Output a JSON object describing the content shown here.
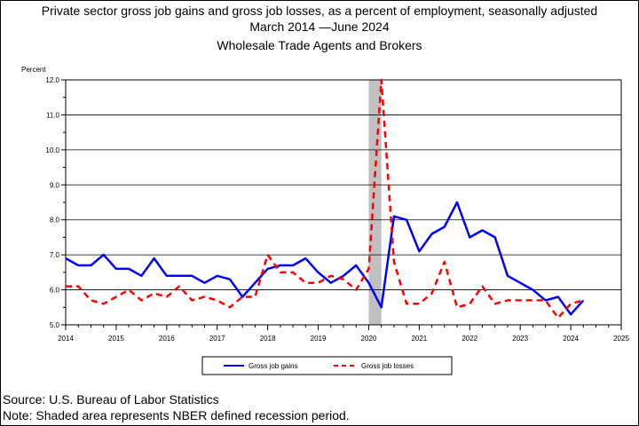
{
  "titles": {
    "line1": "Private sector gross job gains and gross job losses, as a percent of employment, seasonally adjusted",
    "line2": "March 2014 —June 2024",
    "line3": "Wholesale Trade Agents and Brokers"
  },
  "footer": {
    "source": "Source: U.S. Bureau of Labor Statistics",
    "note": "Note: Shaded area represents NBER defined recession period."
  },
  "chart_data": {
    "type": "line",
    "ylabel": "Percent",
    "ylim": [
      5.0,
      12.0
    ],
    "xlim": [
      2014,
      2025
    ],
    "y_ticks": [
      "5.0",
      "6.0",
      "7.0",
      "8.0",
      "9.0",
      "10.0",
      "11.0",
      "12.0"
    ],
    "x_ticks": [
      "2014",
      "2015",
      "2016",
      "2017",
      "2018",
      "2019",
      "2020",
      "2021",
      "2022",
      "2023",
      "2024",
      "2025"
    ],
    "grid": "horizontal",
    "legend_position": "bottom",
    "recession": {
      "start": 2020.0,
      "end": 2020.25
    },
    "x": [
      2014.0,
      2014.25,
      2014.5,
      2014.75,
      2015.0,
      2015.25,
      2015.5,
      2015.75,
      2016.0,
      2016.25,
      2016.5,
      2016.75,
      2017.0,
      2017.25,
      2017.5,
      2017.75,
      2018.0,
      2018.25,
      2018.5,
      2018.75,
      2019.0,
      2019.25,
      2019.5,
      2019.75,
      2020.0,
      2020.25,
      2020.5,
      2020.75,
      2021.0,
      2021.25,
      2021.5,
      2021.75,
      2022.0,
      2022.25,
      2022.5,
      2022.75,
      2023.0,
      2023.25,
      2023.5,
      2023.75,
      2024.0,
      2024.25
    ],
    "series": [
      {
        "name": "Gross job gains",
        "color": "#0000ff",
        "style": "solid",
        "values": [
          6.9,
          6.7,
          6.7,
          7.0,
          6.6,
          6.6,
          6.4,
          6.9,
          6.4,
          6.4,
          6.4,
          6.2,
          6.4,
          6.3,
          5.8,
          6.2,
          6.6,
          6.7,
          6.7,
          6.9,
          6.5,
          6.2,
          6.4,
          6.7,
          6.2,
          5.5,
          8.1,
          8.0,
          7.1,
          7.6,
          7.8,
          8.5,
          7.5,
          7.7,
          7.5,
          6.4,
          6.2,
          6.0,
          5.7,
          5.8,
          5.3,
          5.7
        ]
      },
      {
        "name": "Gross job losses",
        "color": "#ff0000",
        "style": "dashed",
        "values": [
          6.1,
          6.1,
          5.7,
          5.6,
          5.8,
          6.0,
          5.7,
          5.9,
          5.8,
          6.1,
          5.7,
          5.8,
          5.7,
          5.5,
          5.8,
          5.8,
          7.0,
          6.5,
          6.5,
          6.2,
          6.2,
          6.4,
          6.3,
          6.0,
          6.6,
          12.0,
          6.8,
          5.6,
          5.6,
          5.9,
          6.8,
          5.5,
          5.6,
          6.1,
          5.6,
          5.7,
          5.7,
          5.7,
          5.7,
          5.2,
          5.6,
          5.7
        ]
      }
    ]
  }
}
